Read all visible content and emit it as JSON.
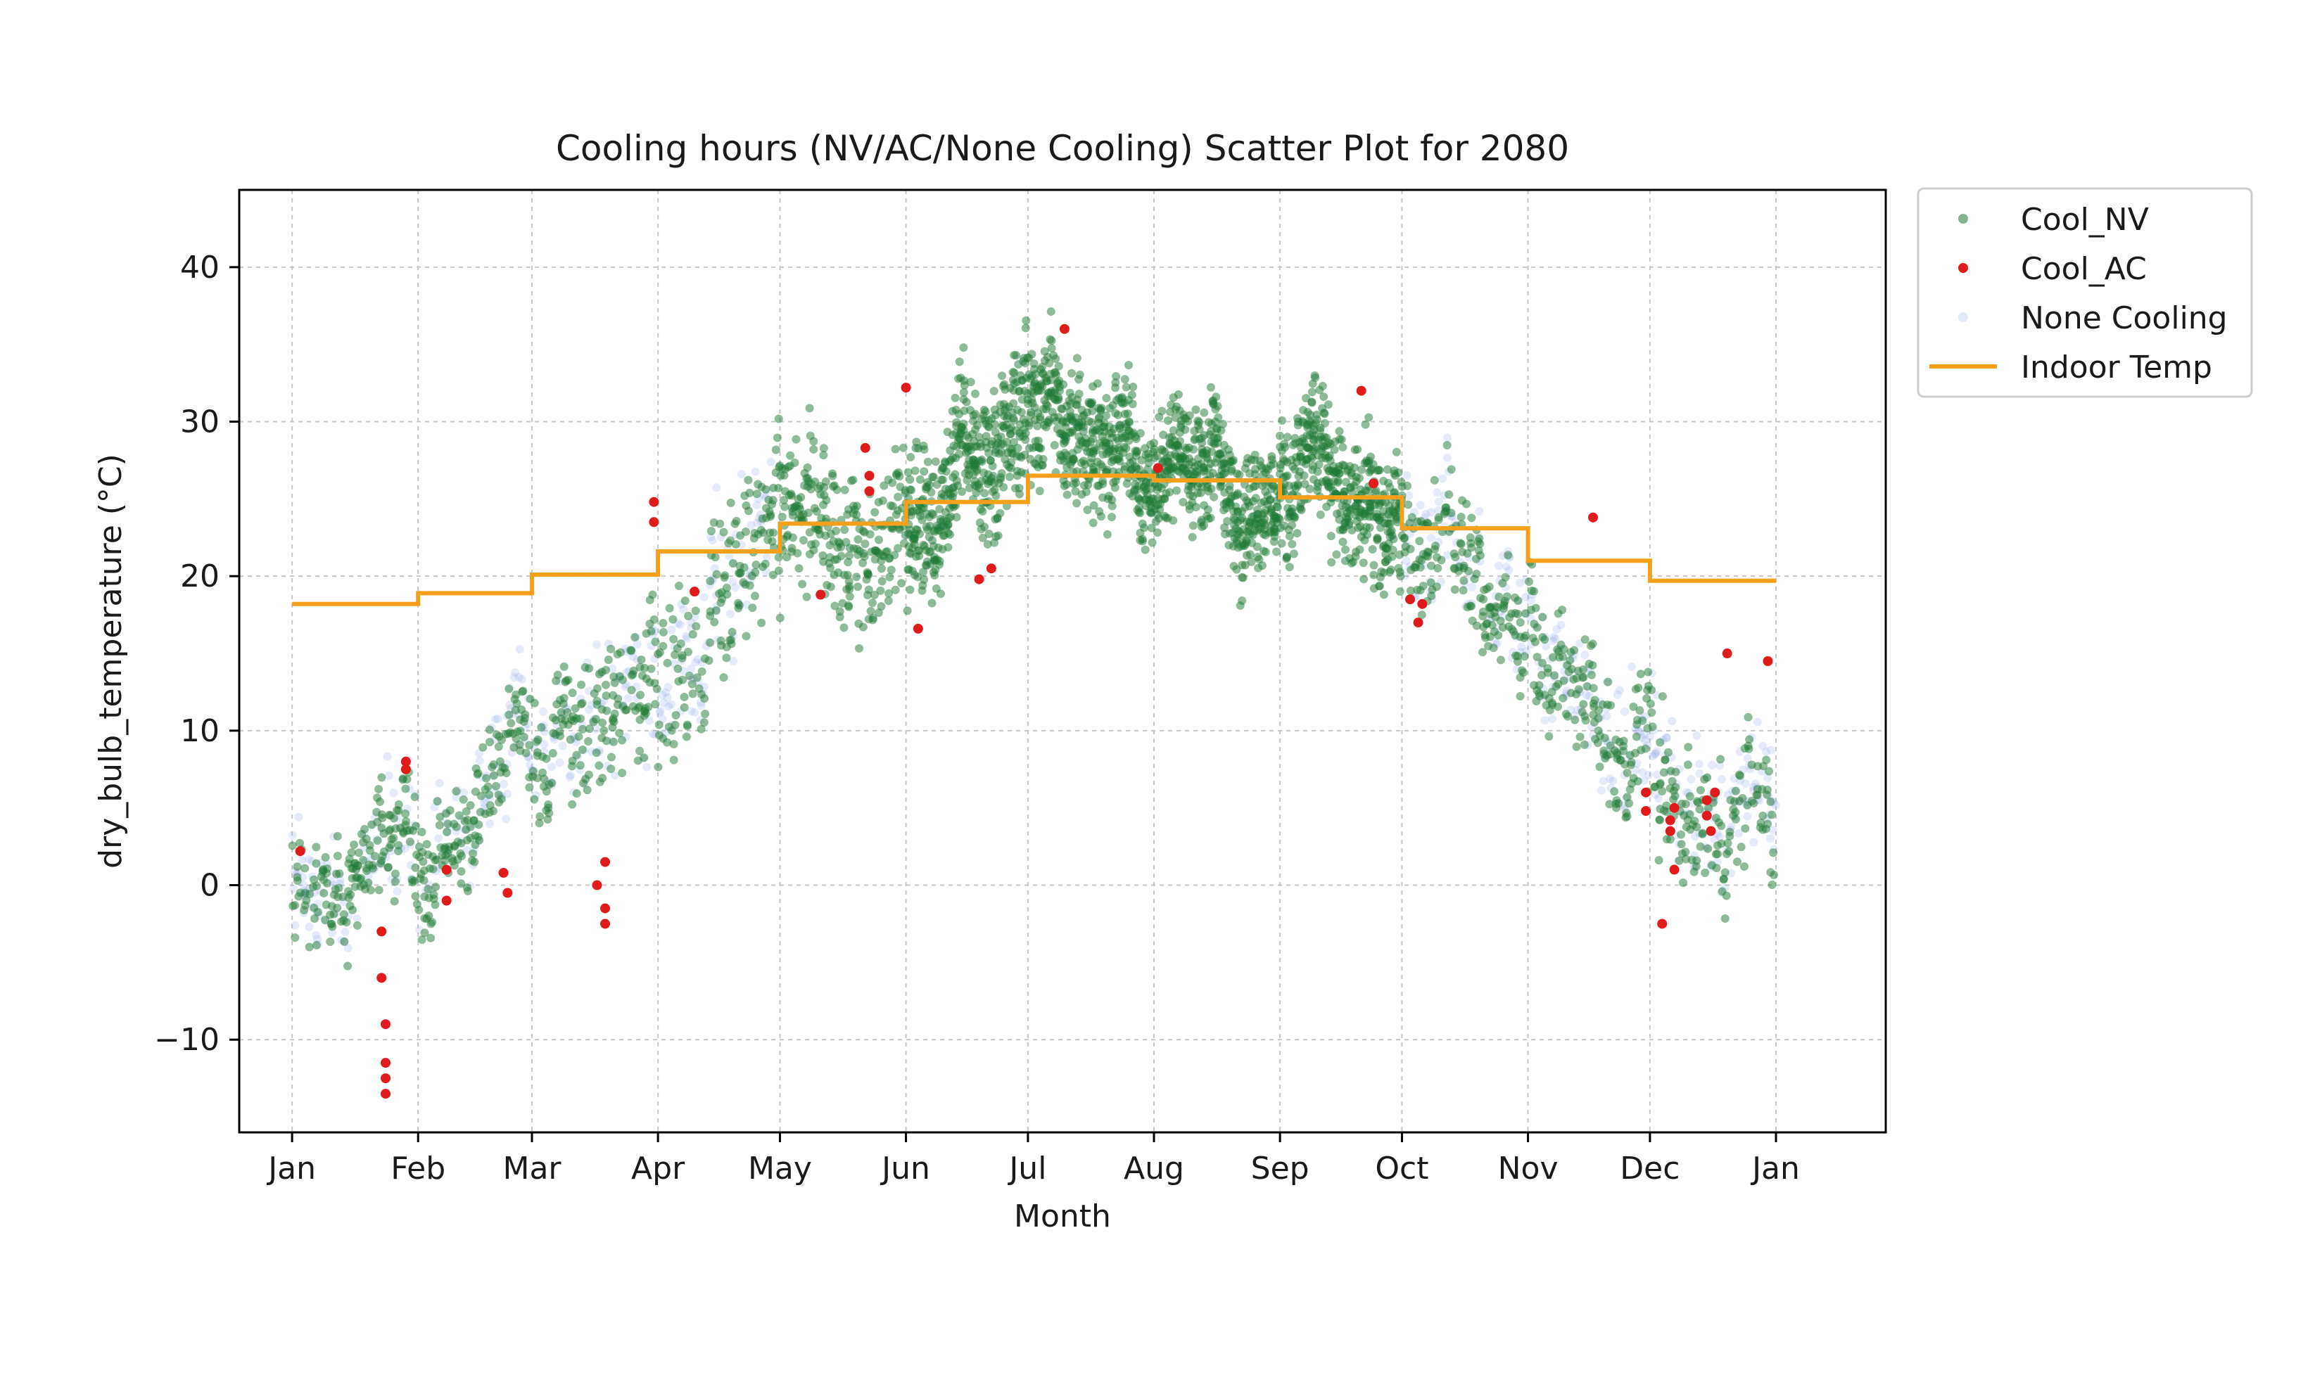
{
  "chart_data": {
    "type": "scatter",
    "title": "Cooling hours (NV/AC/None Cooling) Scatter Plot for 2080",
    "xlabel": "Month",
    "ylabel": "dry_bulb_temperature (°C)",
    "x_ticks": [
      "Jan",
      "Feb",
      "Mar",
      "Apr",
      "May",
      "Jun",
      "Jul",
      "Aug",
      "Sep",
      "Oct",
      "Nov",
      "Dec",
      "Jan"
    ],
    "x_range_days": [
      -13,
      392
    ],
    "y_ticks": [
      -10,
      0,
      10,
      20,
      30,
      40
    ],
    "ylim": [
      -16,
      45
    ],
    "grid": true,
    "legend_position": "outside right",
    "legend": [
      "Cool_NV",
      "Cool_AC",
      "None Cooling",
      "Indoor Temp"
    ],
    "colors": {
      "Cool_NV": "#1e7a35",
      "Cool_AC": "#e01b1b",
      "None Cooling": "#8fa6e3",
      "Indoor Temp": "#f5a01a"
    },
    "indoor_temp": {
      "months": [
        "Jan",
        "Feb",
        "Mar",
        "Apr",
        "May",
        "Jun",
        "Jul",
        "Aug",
        "Sep",
        "Oct",
        "Nov",
        "Dec"
      ],
      "values": [
        18.2,
        18.9,
        20.1,
        21.6,
        23.4,
        24.8,
        26.5,
        26.2,
        25.1,
        23.1,
        21.0,
        19.7
      ]
    },
    "cool_nv_daily_range": {
      "months": [
        "Jan",
        "Feb",
        "Mar",
        "Apr",
        "May",
        "Jun",
        "Jul",
        "Aug",
        "Sep",
        "Oct",
        "Nov",
        "Dec"
      ],
      "min": [
        -8,
        -7,
        -2,
        3,
        10,
        13,
        20,
        19,
        17,
        12,
        8,
        -4
      ],
      "max": [
        8,
        10,
        16,
        28,
        37,
        35,
        42,
        37,
        36,
        31,
        25,
        17
      ]
    },
    "cool_ac_points": [
      {
        "x": "Jan 3",
        "y": 2.2
      },
      {
        "x": "Jan 23",
        "y": -3
      },
      {
        "x": "Jan 23",
        "y": -6
      },
      {
        "x": "Jan 24",
        "y": -9
      },
      {
        "x": "Jan 24",
        "y": -11.5
      },
      {
        "x": "Jan 24",
        "y": -12.5
      },
      {
        "x": "Jan 24",
        "y": -13.5
      },
      {
        "x": "Jan 29",
        "y": 7.5
      },
      {
        "x": "Jan 29",
        "y": 8
      },
      {
        "x": "Feb 8",
        "y": 1
      },
      {
        "x": "Feb 8",
        "y": -1
      },
      {
        "x": "Feb 22",
        "y": 0.8
      },
      {
        "x": "Feb 23",
        "y": -0.5
      },
      {
        "x": "Mar 17",
        "y": 0
      },
      {
        "x": "Mar 19",
        "y": 1.5
      },
      {
        "x": "Mar 19",
        "y": -1.5
      },
      {
        "x": "Mar 19",
        "y": -2.5
      },
      {
        "x": "Mar 31",
        "y": 23.5
      },
      {
        "x": "Mar 31",
        "y": 24.8
      },
      {
        "x": "Apr 10",
        "y": 19
      },
      {
        "x": "May 11",
        "y": 18.8
      },
      {
        "x": "May 22",
        "y": 28.3
      },
      {
        "x": "May 23",
        "y": 26.5
      },
      {
        "x": "May 23",
        "y": 25.5
      },
      {
        "x": "Jun 1",
        "y": 32.2
      },
      {
        "x": "Jun 4",
        "y": 16.6
      },
      {
        "x": "Jun 19",
        "y": 19.8
      },
      {
        "x": "Jun 22",
        "y": 20.5
      },
      {
        "x": "Jul 10",
        "y": 36
      },
      {
        "x": "Aug 2",
        "y": 27
      },
      {
        "x": "Sep 21",
        "y": 32
      },
      {
        "x": "Sep 24",
        "y": 26
      },
      {
        "x": "Oct 3",
        "y": 18.5
      },
      {
        "x": "Oct 5",
        "y": 17
      },
      {
        "x": "Oct 6",
        "y": 18.2
      },
      {
        "x": "Nov 17",
        "y": 23.8
      },
      {
        "x": "Nov 30",
        "y": 6
      },
      {
        "x": "Nov 30",
        "y": 4.8
      },
      {
        "x": "Dec 4",
        "y": -2.5
      },
      {
        "x": "Dec 6",
        "y": 4.2
      },
      {
        "x": "Dec 6",
        "y": 3.5
      },
      {
        "x": "Dec 7",
        "y": 5
      },
      {
        "x": "Dec 7",
        "y": 1
      },
      {
        "x": "Dec 15",
        "y": 5.5
      },
      {
        "x": "Dec 15",
        "y": 4.5
      },
      {
        "x": "Dec 16",
        "y": 3.5
      },
      {
        "x": "Dec 17",
        "y": 6
      },
      {
        "x": "Dec 20",
        "y": 15
      },
      {
        "x": "Dec 30",
        "y": 14.5
      }
    ]
  }
}
